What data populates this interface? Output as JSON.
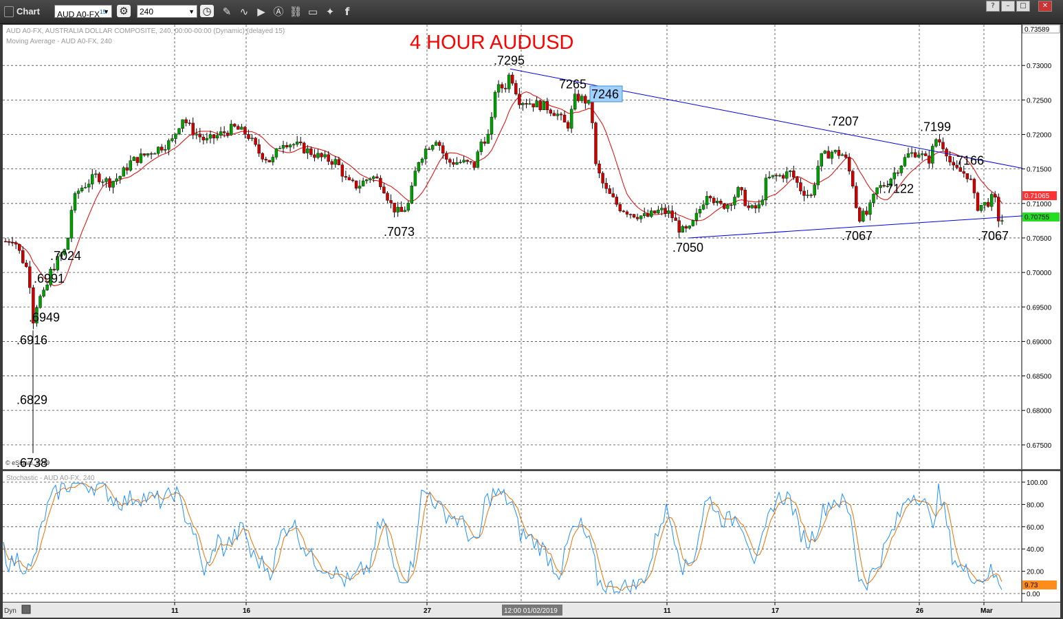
{
  "toolbar": {
    "app_label": "Chart",
    "symbol_value": "AUD A0-FX",
    "symbol_sup": "15",
    "interval_value": "240",
    "icons": [
      "settings-icon",
      "clock-icon",
      "pencil-icon",
      "draw-curve-icon",
      "play-icon",
      "alert-icon",
      "link-icon",
      "comment-icon",
      "twitter-icon",
      "facebook-icon"
    ],
    "window_controls": [
      "?",
      "–",
      "□",
      "✕"
    ]
  },
  "colors": {
    "background": "#ffffff",
    "frame": "#3a3a3a",
    "candle_up": "#00a000",
    "candle_down": "#d00000",
    "moving_average": "#e00000",
    "trendline": "#0000e0",
    "stoch_k": "#1e90ff",
    "stoch_d": "#e87000",
    "title": "#ff0000"
  },
  "main_chart": {
    "header_line1": "AUD A0-FX, AUSTRALIA DOLLAR COMPOSITE, 240, 00:00-00:00 (Dynamic) (delayed 15)",
    "header_line2": "Moving Average - AUD A0-FX, 240",
    "watermark": "© eSignal, 2019",
    "title": "4 HOUR AUDUSD",
    "y_ticks": [
      "0.73000",
      "0.72500",
      "0.72000",
      "0.71500",
      "0.71000",
      "0.70500",
      "0.70000",
      "0.69500",
      "0.69000",
      "0.68500",
      "0.68000",
      "0.67500"
    ],
    "top_value_label": "0.73589",
    "current_price_red": "0.71065",
    "current_price_green": "0.70755",
    "highlight_box_label": "7246"
  },
  "stoch_panel": {
    "header": "Stochastic - AUD A0-FX, 240",
    "y_ticks": [
      "100.00",
      "80.00",
      "60.00",
      "40.00",
      "20.00",
      "0.00"
    ],
    "current_value": "9.73"
  },
  "x_axis": {
    "labels": [
      "11",
      "16",
      "27",
      "11",
      "17",
      "26",
      "Mar"
    ],
    "highlight_label": "12:00 01/02/2019",
    "bottom_left_label": "Dyn"
  },
  "chart_data": {
    "type": "candlestick",
    "title": "4 HOUR AUDUSD",
    "ylim": [
      0.6715,
      0.7359
    ],
    "stoch_ylim": [
      0,
      100
    ],
    "annotations": [
      {
        "text": ".6738",
        "x": 48,
        "price": 0.6738
      },
      {
        "text": ".6829",
        "x": 48,
        "price": 0.6829
      },
      {
        "text": ".6916",
        "x": 48,
        "price": 0.6916
      },
      {
        "text": ".6949",
        "x": 66,
        "price": 0.6949
      },
      {
        "text": ".6991",
        "x": 73,
        "price": 0.6991
      },
      {
        "text": ".7024",
        "x": 97,
        "price": 0.7024
      },
      {
        "text": ".7073",
        "x": 582,
        "price": 0.7073
      },
      {
        "text": ".7295",
        "x": 742,
        "price": 0.7295
      },
      {
        "text": "7265",
        "x": 837,
        "price": 0.7265
      },
      {
        "text": ".7050",
        "x": 1002,
        "price": 0.705
      },
      {
        "text": ".7207",
        "x": 1228,
        "price": 0.7207
      },
      {
        "text": ".7067",
        "x": 1248,
        "price": 0.7067
      },
      {
        "text": ".7122",
        "x": 1308,
        "price": 0.7122
      },
      {
        "text": ".7199",
        "x": 1362,
        "price": 0.7199
      },
      {
        "text": ".7166",
        "x": 1410,
        "price": 0.7166
      },
      {
        "text": ".7067",
        "x": 1446,
        "price": 0.7067
      }
    ],
    "trendlines": [
      {
        "x1": 742,
        "p1": 0.7295,
        "x2": 1487,
        "p2": 0.7151
      },
      {
        "x1": 1002,
        "p1": 0.705,
        "x2": 1487,
        "p2": 0.7082
      }
    ],
    "series_anchors": [
      [
        8,
        0.7045
      ],
      [
        20,
        0.705
      ],
      [
        32,
        0.702
      ],
      [
        42,
        0.7
      ],
      [
        48,
        0.693
      ],
      [
        55,
        0.696
      ],
      [
        66,
        0.697
      ],
      [
        73,
        0.7
      ],
      [
        85,
        0.702
      ],
      [
        97,
        0.7035
      ],
      [
        105,
        0.71
      ],
      [
        115,
        0.712
      ],
      [
        140,
        0.714
      ],
      [
        160,
        0.713
      ],
      [
        175,
        0.714
      ],
      [
        190,
        0.716
      ],
      [
        210,
        0.717
      ],
      [
        230,
        0.718
      ],
      [
        250,
        0.719
      ],
      [
        265,
        0.7225
      ],
      [
        280,
        0.7205
      ],
      [
        300,
        0.719
      ],
      [
        320,
        0.72
      ],
      [
        340,
        0.721
      ],
      [
        360,
        0.72
      ],
      [
        375,
        0.7175
      ],
      [
        395,
        0.716
      ],
      [
        410,
        0.719
      ],
      [
        430,
        0.7185
      ],
      [
        450,
        0.7175
      ],
      [
        470,
        0.7165
      ],
      [
        490,
        0.716
      ],
      [
        505,
        0.713
      ],
      [
        520,
        0.7125
      ],
      [
        540,
        0.714
      ],
      [
        555,
        0.713
      ],
      [
        570,
        0.7095
      ],
      [
        582,
        0.7085
      ],
      [
        595,
        0.71
      ],
      [
        607,
        0.716
      ],
      [
        620,
        0.718
      ],
      [
        635,
        0.7195
      ],
      [
        650,
        0.716
      ],
      [
        670,
        0.716
      ],
      [
        690,
        0.7155
      ],
      [
        700,
        0.719
      ],
      [
        713,
        0.72
      ],
      [
        720,
        0.7265
      ],
      [
        735,
        0.727
      ],
      [
        742,
        0.729
      ],
      [
        755,
        0.725
      ],
      [
        775,
        0.7245
      ],
      [
        795,
        0.724
      ],
      [
        810,
        0.723
      ],
      [
        825,
        0.721
      ],
      [
        837,
        0.7255
      ],
      [
        850,
        0.725
      ],
      [
        860,
        0.724
      ],
      [
        866,
        0.7155
      ],
      [
        880,
        0.712
      ],
      [
        900,
        0.7095
      ],
      [
        920,
        0.7085
      ],
      [
        940,
        0.708
      ],
      [
        960,
        0.709
      ],
      [
        975,
        0.7085
      ],
      [
        990,
        0.706
      ],
      [
        1002,
        0.706
      ],
      [
        1015,
        0.7085
      ],
      [
        1030,
        0.712
      ],
      [
        1045,
        0.7095
      ],
      [
        1060,
        0.71
      ],
      [
        1075,
        0.712
      ],
      [
        1090,
        0.709
      ],
      [
        1105,
        0.7095
      ],
      [
        1115,
        0.7135
      ],
      [
        1135,
        0.714
      ],
      [
        1150,
        0.7145
      ],
      [
        1165,
        0.712
      ],
      [
        1180,
        0.711
      ],
      [
        1192,
        0.7165
      ],
      [
        1210,
        0.7175
      ],
      [
        1228,
        0.717
      ],
      [
        1240,
        0.713
      ],
      [
        1248,
        0.708
      ],
      [
        1262,
        0.7085
      ],
      [
        1275,
        0.712
      ],
      [
        1290,
        0.713
      ],
      [
        1305,
        0.715
      ],
      [
        1320,
        0.717
      ],
      [
        1335,
        0.7175
      ],
      [
        1350,
        0.716
      ],
      [
        1362,
        0.7195
      ],
      [
        1375,
        0.718
      ],
      [
        1385,
        0.715
      ],
      [
        1400,
        0.7145
      ],
      [
        1410,
        0.714
      ],
      [
        1420,
        0.7095
      ],
      [
        1435,
        0.71
      ],
      [
        1446,
        0.711
      ],
      [
        1452,
        0.7078
      ],
      [
        1458,
        0.7076
      ]
    ],
    "stoch_k_anchors": [
      [
        5,
        40
      ],
      [
        15,
        25
      ],
      [
        25,
        32
      ],
      [
        35,
        25
      ],
      [
        45,
        20
      ],
      [
        55,
        45
      ],
      [
        65,
        70
      ],
      [
        75,
        85
      ],
      [
        90,
        95
      ],
      [
        110,
        100
      ],
      [
        130,
        98
      ],
      [
        150,
        95
      ],
      [
        165,
        85
      ],
      [
        180,
        82
      ],
      [
        200,
        88
      ],
      [
        220,
        85
      ],
      [
        240,
        83
      ],
      [
        255,
        93
      ],
      [
        265,
        75
      ],
      [
        280,
        60
      ],
      [
        295,
        20
      ],
      [
        305,
        25
      ],
      [
        315,
        50
      ],
      [
        325,
        40
      ],
      [
        340,
        50
      ],
      [
        355,
        60
      ],
      [
        365,
        35
      ],
      [
        375,
        30
      ],
      [
        385,
        25
      ],
      [
        395,
        20
      ],
      [
        410,
        55
      ],
      [
        425,
        65
      ],
      [
        440,
        45
      ],
      [
        455,
        30
      ],
      [
        470,
        25
      ],
      [
        485,
        20
      ],
      [
        500,
        12
      ],
      [
        510,
        10
      ],
      [
        525,
        20
      ],
      [
        540,
        25
      ],
      [
        550,
        60
      ],
      [
        560,
        65
      ],
      [
        565,
        40
      ],
      [
        575,
        20
      ],
      [
        590,
        15
      ],
      [
        600,
        25
      ],
      [
        612,
        88
      ],
      [
        625,
        90
      ],
      [
        640,
        75
      ],
      [
        655,
        70
      ],
      [
        670,
        65
      ],
      [
        685,
        50
      ],
      [
        695,
        40
      ],
      [
        705,
        82
      ],
      [
        718,
        90
      ],
      [
        730,
        88
      ],
      [
        745,
        80
      ],
      [
        755,
        55
      ],
      [
        770,
        50
      ],
      [
        790,
        40
      ],
      [
        805,
        25
      ],
      [
        815,
        18
      ],
      [
        830,
        55
      ],
      [
        845,
        60
      ],
      [
        860,
        40
      ],
      [
        870,
        10
      ],
      [
        885,
        6
      ],
      [
        900,
        5
      ],
      [
        915,
        6
      ],
      [
        930,
        8
      ],
      [
        945,
        25
      ],
      [
        960,
        65
      ],
      [
        970,
        75
      ],
      [
        985,
        45
      ],
      [
        995,
        20
      ],
      [
        1010,
        35
      ],
      [
        1025,
        80
      ],
      [
        1035,
        85
      ],
      [
        1045,
        70
      ],
      [
        1060,
        65
      ],
      [
        1075,
        70
      ],
      [
        1090,
        45
      ],
      [
        1100,
        25
      ],
      [
        1115,
        60
      ],
      [
        1125,
        82
      ],
      [
        1140,
        88
      ],
      [
        1150,
        85
      ],
      [
        1160,
        60
      ],
      [
        1175,
        45
      ],
      [
        1185,
        55
      ],
      [
        1200,
        78
      ],
      [
        1215,
        85
      ],
      [
        1230,
        80
      ],
      [
        1240,
        60
      ],
      [
        1248,
        15
      ],
      [
        1260,
        10
      ],
      [
        1275,
        25
      ],
      [
        1290,
        45
      ],
      [
        1305,
        65
      ],
      [
        1320,
        88
      ],
      [
        1335,
        90
      ],
      [
        1345,
        80
      ],
      [
        1355,
        60
      ],
      [
        1365,
        90
      ],
      [
        1375,
        70
      ],
      [
        1385,
        35
      ],
      [
        1400,
        20
      ],
      [
        1415,
        18
      ],
      [
        1425,
        12
      ],
      [
        1440,
        20
      ],
      [
        1452,
        10
      ],
      [
        1458,
        8
      ]
    ]
  }
}
